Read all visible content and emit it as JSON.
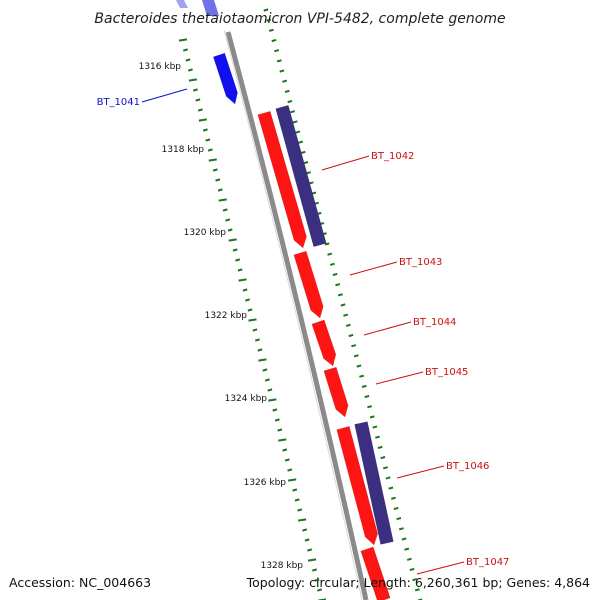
{
  "title": "Bacteroides thetaiotaomicron VPI-5482, complete genome",
  "footer": {
    "accession": "Accession: NC_004663",
    "summary": "Topology: circular; Length: 6,260,361 bp; Genes: 4,864"
  },
  "colors": {
    "backbone": "#8a8a8a",
    "tick": "#1a7a1a",
    "forward_gene": "#ff1414",
    "reverse_gene": "#3a2f80",
    "highlight_gene": "#1010ee",
    "forward_label": "#cc1111",
    "highlight_label": "#1010cc"
  },
  "scale": {
    "unit": "kbp",
    "labels": [
      "1316 kbp",
      "1318 kbp",
      "1320 kbp",
      "1322 kbp",
      "1324 kbp",
      "1326 kbp",
      "1328 kbp"
    ]
  },
  "genes": [
    {
      "name": "BT_1041",
      "strand": "highlight",
      "labeled": true
    },
    {
      "name": "BT_1042",
      "strand": "forward",
      "labeled": true
    },
    {
      "name": "BT_1042-rev",
      "strand": "reverse",
      "labeled": false
    },
    {
      "name": "BT_1043",
      "strand": "forward",
      "labeled": true
    },
    {
      "name": "BT_1044",
      "strand": "forward",
      "labeled": true
    },
    {
      "name": "BT_1045",
      "strand": "forward",
      "labeled": true
    },
    {
      "name": "BT_1046",
      "strand": "forward",
      "labeled": true
    },
    {
      "name": "BT_1046-rev",
      "strand": "reverse",
      "labeled": false
    },
    {
      "name": "BT_1047",
      "strand": "forward",
      "labeled": true
    }
  ]
}
